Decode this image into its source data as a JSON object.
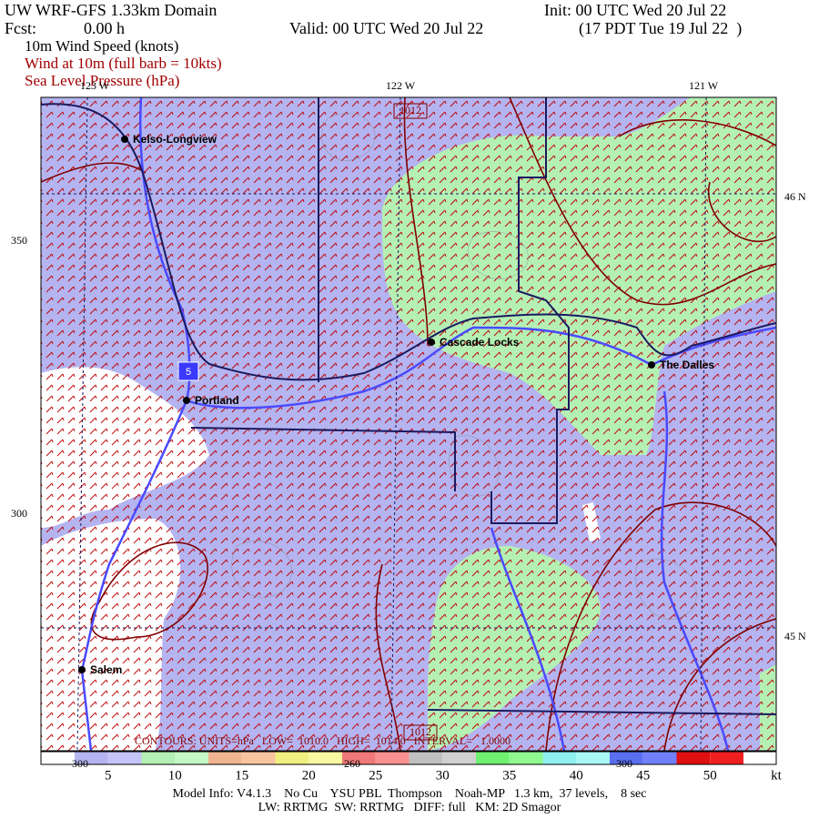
{
  "header": {
    "title": "UW WRF-GFS 1.33km Domain",
    "init": "Init: 00 UTC Wed 20 Jul 22",
    "fcst_label": "Fcst:",
    "fcst_value": "0.00 h",
    "valid": "Valid: 00 UTC Wed 20 Jul 22",
    "local": "(17 PDT Tue 19 Jul 22  )",
    "fields": [
      "10m Wind Speed (knots)",
      "Wind at 10m (full barb = 10kts)",
      "Sea Level Pressure (hPa)"
    ]
  },
  "map": {
    "lon_labels": [
      "123 W",
      "122 W",
      "121 W"
    ],
    "lat_labels": [
      "46 N",
      "45 N"
    ],
    "grid_labels": [
      "350",
      "300"
    ],
    "cities": [
      "Kelso-Longview",
      "Portland",
      "Cascade Locks",
      "The Dalles",
      "Salem"
    ],
    "highway": "5",
    "contour_labels": [
      "1012",
      "1012"
    ],
    "contour_info": "CONTOURS: UNITS=hPa   LOW=  1010.0   HIGH=  1014.0   INTERVAL=   1.0000",
    "overlay_numbers": [
      "300",
      "260",
      "300"
    ]
  },
  "colorbar": {
    "labels": [
      "5",
      "10",
      "15",
      "20",
      "25",
      "30",
      "35",
      "40",
      "45",
      "50"
    ],
    "unit": "kt"
  },
  "footer": [
    "Model Info: V4.1.3    No Cu    YSU PBL  Thompson    Noah-MP   1.3 km,  37 levels,    8 sec",
    "LW: RRTMG  SW: RRTMG   DIFF: full   KM: 2D Smagor"
  ]
}
